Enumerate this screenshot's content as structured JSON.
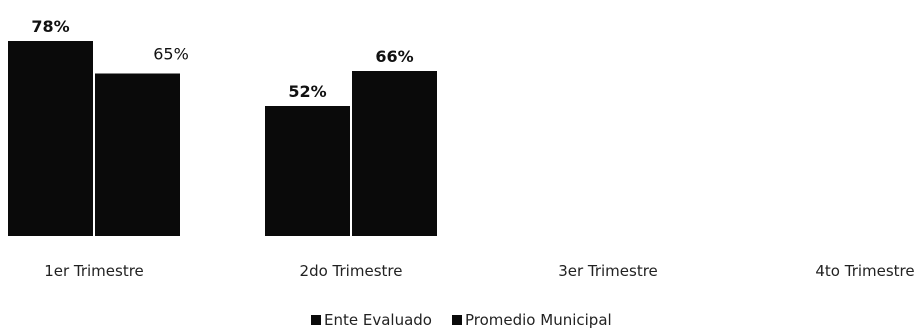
{
  "colors": {
    "series_ente": "#0a0a0a",
    "series_promedio": "#0a0a0a",
    "text": "#111111"
  },
  "chart_data": {
    "type": "bar",
    "categories": [
      "1er Trimestre",
      "2do Trimestre",
      "3er Trimestre",
      "4to Trimestre"
    ],
    "series": [
      {
        "name": "Ente Evaluado",
        "values": [
          78,
          52,
          null,
          null
        ],
        "labels": [
          "78%",
          "52%",
          "",
          ""
        ]
      },
      {
        "name": "Promedio Municipal",
        "values": [
          65,
          66,
          null,
          null
        ],
        "labels": [
          "65%",
          "66%",
          "",
          ""
        ]
      }
    ],
    "title": "",
    "xlabel": "",
    "ylabel": "",
    "ylim": [
      0,
      100
    ],
    "grid": false,
    "legend_position": "bottom-center"
  }
}
